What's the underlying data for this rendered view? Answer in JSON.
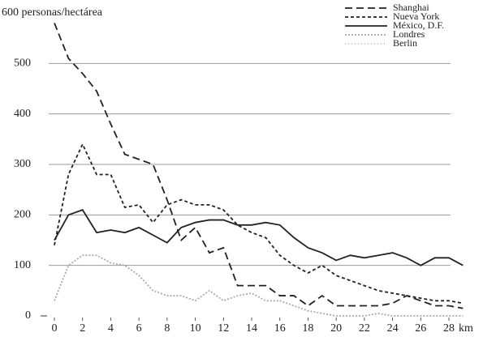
{
  "chart_data": {
    "type": "line",
    "x": [
      0,
      1,
      2,
      3,
      4,
      5,
      6,
      7,
      8,
      9,
      10,
      11,
      12,
      13,
      14,
      15,
      16,
      17,
      18,
      19,
      20,
      21,
      22,
      23,
      24,
      25,
      26,
      27,
      28,
      29
    ],
    "xlabel": "km",
    "xlim": [
      0,
      29
    ],
    "xticks": [
      0,
      2,
      4,
      6,
      8,
      10,
      12,
      14,
      16,
      18,
      20,
      22,
      24,
      26,
      28
    ],
    "ylim": [
      0,
      600
    ],
    "yticks": [
      0,
      100,
      200,
      300,
      400,
      500,
      {
        "value": 600,
        "label": "600 personas/hectárea"
      }
    ],
    "grid": true,
    "legend": "upper right",
    "series": [
      {
        "name": "Shanghai",
        "color": "#222",
        "dash": "9,5",
        "values": [
          580,
          510,
          480,
          445,
          380,
          320,
          310,
          300,
          230,
          150,
          175,
          125,
          135,
          60,
          60,
          60,
          40,
          40,
          20,
          40,
          20,
          20,
          20,
          20,
          25,
          40,
          30,
          20,
          20,
          15
        ]
      },
      {
        "name": "Nueva York",
        "color": "#222",
        "dash": "4,3",
        "values": [
          140,
          280,
          340,
          280,
          280,
          215,
          220,
          185,
          220,
          230,
          220,
          220,
          210,
          180,
          165,
          155,
          120,
          100,
          85,
          100,
          80,
          70,
          60,
          50,
          45,
          40,
          35,
          30,
          30,
          25
        ]
      },
      {
        "name": "México, D.F.",
        "color": "#222",
        "dash": "none",
        "values": [
          150,
          200,
          210,
          165,
          170,
          165,
          175,
          160,
          145,
          175,
          185,
          190,
          190,
          180,
          180,
          185,
          180,
          155,
          135,
          125,
          110,
          120,
          115,
          120,
          125,
          115,
          100,
          115,
          115,
          100
        ]
      },
      {
        "name": "Londres",
        "color": "#aaa",
        "dash": "2,2",
        "values": [
          30,
          100,
          120,
          120,
          105,
          100,
          80,
          50,
          40,
          40,
          30,
          50,
          30,
          40,
          45,
          30,
          30,
          20,
          10,
          5,
          0,
          0,
          0,
          5,
          0,
          0,
          0,
          0,
          0,
          0
        ]
      },
      {
        "name": "Berlin",
        "color": "#bbb",
        "dash": "1,3",
        "values": [
          null,
          null,
          null,
          null,
          null,
          null,
          null,
          null,
          null,
          null,
          null,
          null,
          null,
          null,
          null,
          null,
          null,
          null,
          null,
          null,
          null,
          null,
          null,
          null,
          null,
          null,
          null,
          null,
          null,
          null
        ]
      }
    ]
  }
}
